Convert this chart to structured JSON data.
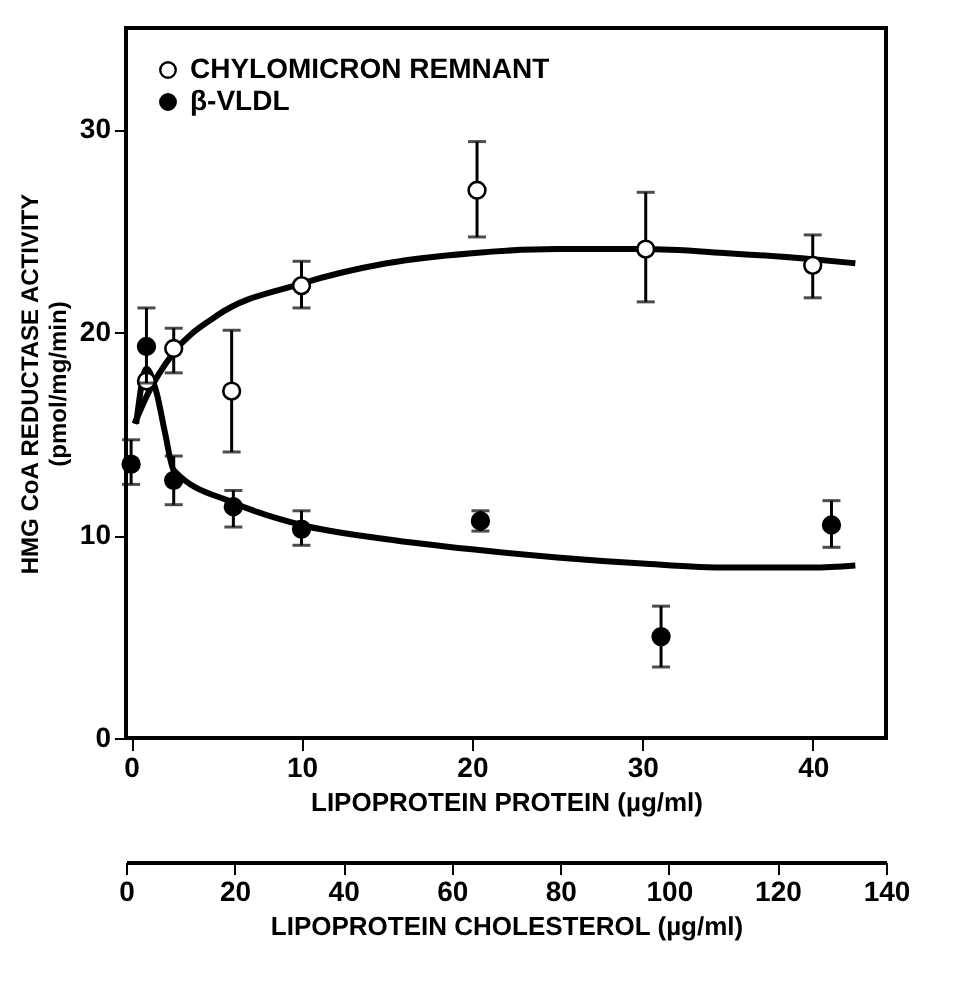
{
  "chart_data": {
    "type": "scatter",
    "xlabel": "LIPOPROTEIN PROTEIN (µg/ml)",
    "ylabel": "HMG CoA REDUCTASE ACTIVITY\n(pmol/mg/min)",
    "x2label": "LIPOPROTEIN CHOLESTEROL (µg/ml)",
    "xlim": [
      -0.3,
      44.3
    ],
    "xticks": [
      0,
      10,
      20,
      30,
      40
    ],
    "ylim": [
      0,
      35
    ],
    "yticks": [
      0,
      10,
      20,
      30
    ],
    "x2lim": [
      0,
      140
    ],
    "x2ticks": [
      0,
      20,
      40,
      60,
      80,
      100,
      120,
      140
    ],
    "legend": "top left",
    "marker": "circle",
    "grid": false,
    "series": [
      {
        "name": "CHYLOMICRON REMNANT",
        "color": "#ffffff",
        "x": [
          0.9,
          2.5,
          5.9,
          10,
          20.3,
          30.2,
          40
        ],
        "values": [
          17.6,
          19.2,
          17.1,
          22.3,
          27,
          24.1,
          23.3
        ],
        "errors": [
          null,
          [
            18,
            20.2
          ],
          [
            14.1,
            20.1
          ],
          [
            21.2,
            23.5
          ],
          [
            24.7,
            29.4
          ],
          [
            21.5,
            26.9
          ],
          [
            21.7,
            24.8
          ]
        ]
      },
      {
        "name": "β-VLDL",
        "color": "#000000",
        "x": [
          0,
          0.9,
          2.5,
          6,
          10,
          20.5,
          31.1,
          41.1
        ],
        "values": [
          13.5,
          19.3,
          12.7,
          11.4,
          10.3,
          10.7,
          5,
          10.5
        ],
        "errors": [
          [
            12.5,
            14.7
          ],
          [
            17.5,
            21.2
          ],
          [
            11.5,
            13.9
          ],
          [
            10.4,
            12.2
          ],
          [
            9.5,
            11.2
          ],
          [
            10.2,
            11.2
          ],
          [
            3.5,
            6.5
          ],
          [
            9.4,
            11.7
          ]
        ]
      },
      {
        "type": "line",
        "marker": "none",
        "color": "#000000",
        "x": [
          0.2,
          1,
          2.5,
          5,
          10,
          15,
          20,
          25,
          30,
          35,
          40,
          42.5
        ],
        "values": [
          15.5,
          17,
          19,
          20.8,
          22.4,
          23.4,
          23.9,
          24.1,
          24.1,
          23.9,
          23.6,
          23.4
        ]
      },
      {
        "type": "line",
        "marker": "none",
        "color": "#000000",
        "x": [
          0.3,
          0.9,
          1.5,
          2,
          2.5,
          6,
          10,
          15,
          20,
          25,
          30,
          35,
          40,
          42.5
        ],
        "values": [
          15.5,
          18.2,
          17,
          15,
          13.2,
          11.6,
          10.5,
          9.8,
          9.3,
          8.9,
          8.6,
          8.4,
          8.4,
          8.5
        ]
      }
    ]
  }
}
